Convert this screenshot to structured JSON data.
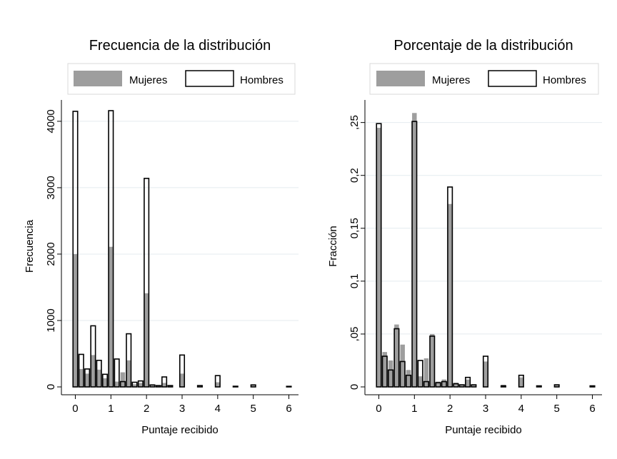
{
  "chart_data": [
    {
      "type": "bar",
      "title": "Frecuencia de la distribución",
      "xlabel": "Puntaje recibido",
      "ylabel": "Frecuencia",
      "xlim": [
        -0.15,
        6.15
      ],
      "ylim": [
        0,
        4300
      ],
      "xticks": [
        0,
        1,
        2,
        3,
        4,
        5,
        6
      ],
      "xtick_labels": [
        "0",
        "1",
        "2",
        "3",
        "4",
        "5",
        "6"
      ],
      "yticks": [
        0,
        1000,
        2000,
        3000,
        4000
      ],
      "ytick_labels": [
        "0",
        "1000",
        "2000",
        "3000",
        "4000"
      ],
      "grid": true,
      "legend_position": "top",
      "series": [
        {
          "name": "Mujeres",
          "style": "filled",
          "color": "#9e9e9e",
          "x": [
            0,
            0.1667,
            0.3333,
            0.5,
            0.6667,
            0.8333,
            1,
            1.1667,
            1.3333,
            1.5,
            1.6667,
            1.8333,
            2,
            2.1667,
            2.3333,
            2.5,
            2.6667,
            3,
            3.5,
            4,
            4.5,
            5,
            6
          ],
          "values": [
            2000,
            270,
            200,
            480,
            260,
            130,
            2110,
            80,
            220,
            400,
            40,
            60,
            1410,
            30,
            20,
            60,
            20,
            200,
            20,
            70,
            10,
            20,
            5
          ]
        },
        {
          "name": "Hombres",
          "style": "outline",
          "color": "#000000",
          "x": [
            0,
            0.1667,
            0.3333,
            0.5,
            0.6667,
            0.8333,
            1,
            1.1667,
            1.3333,
            1.5,
            1.6667,
            1.8333,
            2,
            2.1667,
            2.3333,
            2.5,
            2.6667,
            3,
            3.5,
            4,
            4.5,
            5,
            6
          ],
          "values": [
            4150,
            490,
            270,
            920,
            400,
            190,
            4160,
            420,
            80,
            800,
            70,
            90,
            3140,
            30,
            20,
            150,
            20,
            480,
            20,
            170,
            10,
            30,
            5
          ]
        }
      ]
    },
    {
      "type": "bar",
      "title": "Porcentaje de la distribución",
      "xlabel": "Puntaje recibido",
      "ylabel": "Fracción",
      "xlim": [
        -0.15,
        6.15
      ],
      "ylim": [
        0,
        0.27
      ],
      "xticks": [
        0,
        1,
        2,
        3,
        4,
        5,
        6
      ],
      "xtick_labels": [
        "0",
        "1",
        "2",
        "3",
        "4",
        "5",
        "6"
      ],
      "yticks": [
        0,
        0.05,
        0.1,
        0.15,
        0.2,
        0.25
      ],
      "ytick_labels": [
        "0",
        ",05",
        "0,1",
        "0,15",
        "0,2",
        ",25"
      ],
      "grid": true,
      "legend_position": "top",
      "series": [
        {
          "name": "Mujeres",
          "style": "filled",
          "color": "#9e9e9e",
          "x": [
            0,
            0.1667,
            0.3333,
            0.5,
            0.6667,
            0.8333,
            1,
            1.1667,
            1.3333,
            1.5,
            1.6667,
            1.8333,
            2,
            2.1667,
            2.3333,
            2.5,
            2.6667,
            3,
            3.5,
            4,
            4.5,
            5,
            6
          ],
          "values": [
            0.245,
            0.033,
            0.025,
            0.059,
            0.04,
            0.016,
            0.259,
            0.01,
            0.027,
            0.05,
            0.005,
            0.007,
            0.173,
            0.004,
            0.002,
            0.007,
            0.002,
            0.024,
            0.002,
            0.009,
            0.001,
            0.002,
            0.001
          ]
        },
        {
          "name": "Hombres",
          "style": "outline",
          "color": "#000000",
          "x": [
            0,
            0.1667,
            0.3333,
            0.5,
            0.6667,
            0.8333,
            1,
            1.1667,
            1.3333,
            1.5,
            1.6667,
            1.8333,
            2,
            2.1667,
            2.3333,
            2.5,
            2.6667,
            3,
            3.5,
            4,
            4.5,
            5,
            6
          ],
          "values": [
            0.249,
            0.029,
            0.016,
            0.055,
            0.024,
            0.011,
            0.251,
            0.025,
            0.005,
            0.048,
            0.004,
            0.005,
            0.189,
            0.003,
            0.002,
            0.009,
            0.002,
            0.029,
            0.001,
            0.011,
            0.001,
            0.002,
            0.001
          ]
        }
      ]
    }
  ]
}
